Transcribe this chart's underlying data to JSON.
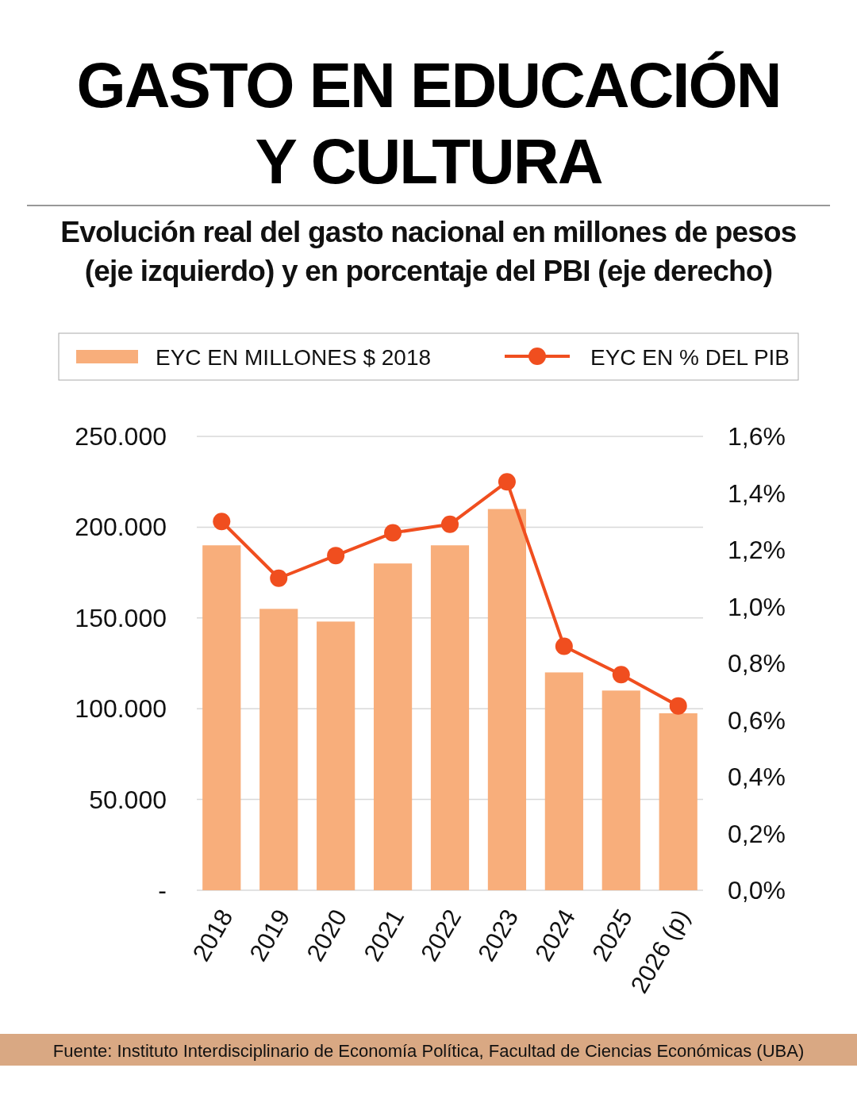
{
  "chart_data": {
    "type": "bar",
    "title": "GASTO EN EDUCACIÓN\nY CULTURA",
    "subtitle": "Evolución real del gasto nacional en millones de pesos\n(eje izquierdo) y en porcentaje del PBI (eje derecho)",
    "categories": [
      "2018",
      "2019",
      "2020",
      "2021",
      "2022",
      "2023",
      "2024",
      "2025",
      "2026 (p)"
    ],
    "series": [
      {
        "name": "EYC EN MILLONES $ 2018",
        "color": "#f8ae7b",
        "values": [
          190000,
          155000,
          148000,
          180000,
          190000,
          210000,
          120000,
          110000,
          97500
        ]
      },
      {
        "name": "EYC EN % DEL PIB",
        "type": "line",
        "axis": "y2",
        "color": "#f04e1f",
        "values": [
          1.3,
          1.1,
          1.18,
          1.26,
          1.29,
          1.44,
          0.86,
          0.76,
          0.65
        ]
      }
    ],
    "ylim": [
      0,
      250000
    ],
    "yticks": [
      {
        "value": 0,
        "label": "-"
      },
      {
        "value": 50000,
        "label": "50.000"
      },
      {
        "value": 100000,
        "label": "100.000"
      },
      {
        "value": 150000,
        "label": "150.000"
      },
      {
        "value": 200000,
        "label": "200.000"
      },
      {
        "value": 250000,
        "label": "250.000"
      }
    ],
    "y2lim": [
      0,
      1.6
    ],
    "y2ticks": [
      {
        "value": 0,
        "label": "0,0%"
      },
      {
        "value": 0.2,
        "label": "0,2%"
      },
      {
        "value": 0.4,
        "label": "0,4%"
      },
      {
        "value": 0.6,
        "label": "0,6%"
      },
      {
        "value": 0.8,
        "label": "0,8%"
      },
      {
        "value": 1,
        "label": "1,0%"
      },
      {
        "value": 1.2,
        "label": "1,2%"
      },
      {
        "value": 1.4,
        "label": "1,4%"
      },
      {
        "value": 1.6,
        "label": "1,6%"
      }
    ],
    "grid": "y",
    "legend": "top",
    "marker": "circle",
    "annotations": [
      "Fuente: Instituto Interdisciplinario de Economía Política, Facultad de Ciencias Económicas (UBA)"
    ]
  }
}
